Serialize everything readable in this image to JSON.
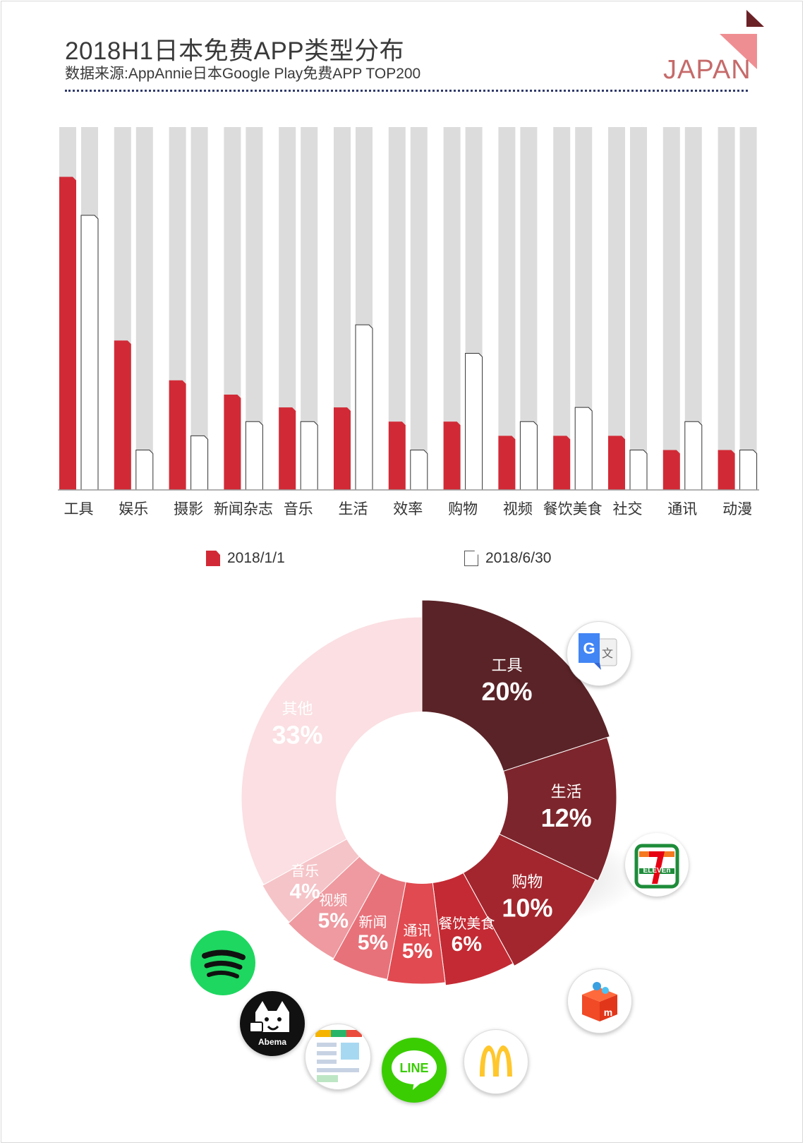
{
  "header": {
    "title": "2018H1日本免费APP类型分布",
    "subtitle": "数据来源:AppAnnie日本Google Play免费APP TOP200",
    "region": "JAPAN",
    "accent": "#d12a36",
    "region_color": "#c66a6a"
  },
  "chart_data": [
    {
      "type": "bar",
      "categories": [
        "工具",
        "娱乐",
        "摄影",
        "新闻杂志",
        "音乐",
        "生活",
        "效率",
        "购物",
        "视频",
        "餐饮美食",
        "社交",
        "通讯",
        "动漫"
      ],
      "series": [
        {
          "name": "2018/1/1",
          "values": [
            22,
            10.5,
            7.7,
            6.7,
            5.8,
            5.8,
            4.8,
            4.8,
            3.8,
            3.8,
            3.8,
            2.8,
            2.8
          ],
          "color": "#d12a36"
        },
        {
          "name": "2018/6/30",
          "values": [
            19.3,
            2.8,
            3.8,
            4.8,
            4.8,
            11.6,
            2.8,
            9.6,
            4.8,
            5.8,
            2.8,
            4.8,
            2.8
          ],
          "color": "#ffffff"
        }
      ],
      "ylim": [
        0,
        25.5
      ],
      "grid": false,
      "background_bar_color": "#dcdcdc",
      "legend_position": "bottom"
    },
    {
      "type": "pie",
      "donut": true,
      "labels": [
        "工具",
        "生活",
        "购物",
        "餐饮美食",
        "通讯",
        "新闻",
        "视频",
        "音乐",
        "其他"
      ],
      "values": [
        20,
        12,
        10,
        6,
        5,
        5,
        5,
        4,
        33
      ],
      "value_labels": [
        "20%",
        "12%",
        "10%",
        "6%",
        "5%",
        "5%",
        "5%",
        "4%",
        "33%"
      ],
      "colors": [
        "#5a2327",
        "#7d252c",
        "#a3262e",
        "#c42a33",
        "#e04a50",
        "#e8727a",
        "#ee9aa0",
        "#f5c4c8",
        "#fbdfe2"
      ]
    }
  ],
  "legend": {
    "items": [
      {
        "label": "2018/1/1",
        "style": "red"
      },
      {
        "label": "2018/6/30",
        "style": "white"
      }
    ]
  },
  "app_icons": [
    {
      "name": "google-translate-icon"
    },
    {
      "name": "seven-eleven-icon",
      "text": "ELEVEn"
    },
    {
      "name": "mercari-icon"
    },
    {
      "name": "mcdonalds-icon"
    },
    {
      "name": "line-icon",
      "text": "LINE"
    },
    {
      "name": "news-app-icon"
    },
    {
      "name": "abematv-icon",
      "text": "Abema"
    },
    {
      "name": "spotify-icon"
    }
  ]
}
